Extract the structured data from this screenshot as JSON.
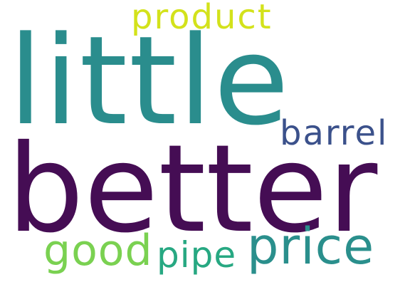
{
  "words": [
    {
      "id": "little",
      "text": "little",
      "color": "#2a8d8d"
    },
    {
      "id": "better",
      "text": "better",
      "color": "#450d54"
    },
    {
      "id": "product",
      "text": "product",
      "color": "#d3e21b"
    },
    {
      "id": "barrel",
      "text": "barrel",
      "color": "#3b518b"
    },
    {
      "id": "price",
      "text": "price",
      "color": "#2a8f8c"
    },
    {
      "id": "good",
      "text": "good",
      "color": "#7ad151"
    },
    {
      "id": "pipe",
      "text": "pipe",
      "color": "#27a882"
    }
  ]
}
